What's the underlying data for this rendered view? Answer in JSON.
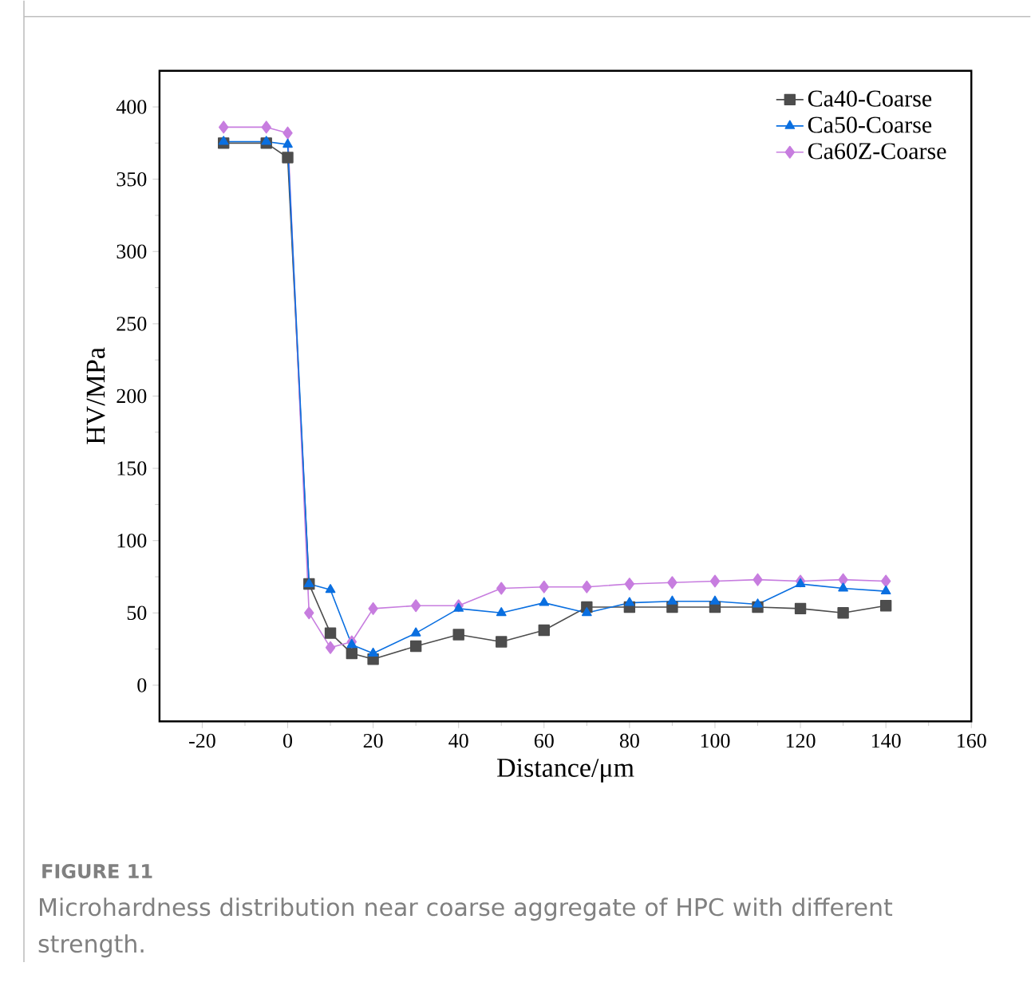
{
  "chart_data": {
    "type": "line",
    "xlabel": "Distance/μm",
    "ylabel": "HV/MPa",
    "x": [
      -15,
      -5,
      0,
      5,
      10,
      15,
      20,
      30,
      40,
      50,
      60,
      70,
      80,
      90,
      100,
      110,
      120,
      130,
      140
    ],
    "series": [
      {
        "name": "Ca40-Coarse",
        "color": "#4d4d4d",
        "marker": "square",
        "values": [
          375,
          375,
          365,
          70,
          36,
          22,
          18,
          27,
          35,
          30,
          38,
          54,
          54,
          54,
          54,
          54,
          53,
          50,
          55
        ]
      },
      {
        "name": "Ca50-Coarse",
        "color": "#0a6fe0",
        "marker": "triangle",
        "values": [
          376,
          376,
          374,
          70,
          66,
          28,
          22,
          36,
          53,
          50,
          57,
          50,
          57,
          58,
          58,
          56,
          70,
          67,
          65
        ]
      },
      {
        "name": "Ca60Z-Coarse",
        "color": "#c77ddf",
        "marker": "diamond",
        "values": [
          386,
          386,
          382,
          50,
          26,
          30,
          53,
          55,
          55,
          67,
          68,
          68,
          70,
          71,
          72,
          73,
          72,
          73,
          72
        ]
      }
    ],
    "xlim": [
      -30,
      160
    ],
    "ylim": [
      -25,
      425
    ],
    "xticks": [
      -20,
      0,
      20,
      40,
      60,
      80,
      100,
      120,
      140,
      160
    ],
    "yticks": [
      0,
      50,
      100,
      150,
      200,
      250,
      300,
      350,
      400
    ],
    "legend": "top right",
    "grid": false,
    "line_style": "solid",
    "annotations": [
      "FIGURE 11",
      "Microhardness distribution near coarse aggregate of HPC with different strength."
    ]
  }
}
